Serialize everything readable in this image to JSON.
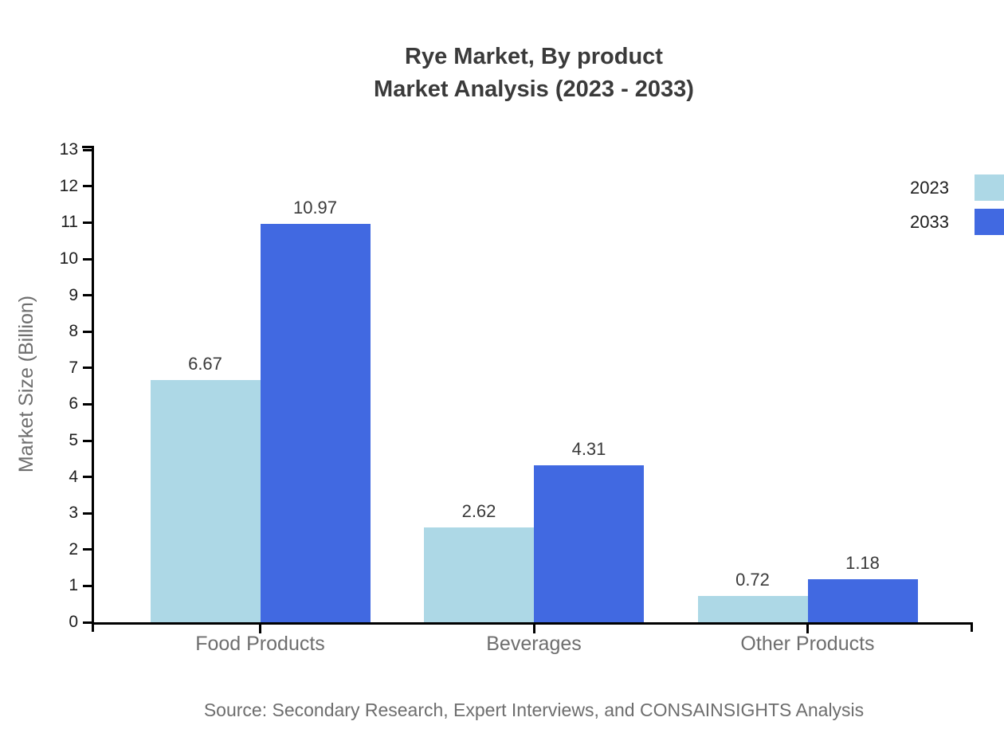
{
  "chart": {
    "title_line1": "Rye Market, By product",
    "title_line2": "Market Analysis (2023 - 2033)",
    "source": "Source: Secondary Research, Expert Interviews, and CONSAINSIGHTS Analysis"
  },
  "chart_data": {
    "type": "bar",
    "title": "Rye Market, By product Market Analysis (2023 - 2033)",
    "categories": [
      "Food Products",
      "Beverages",
      "Other Products"
    ],
    "series": [
      {
        "name": "2023",
        "color": "#ADD8E6",
        "values": [
          6.67,
          2.62,
          0.72
        ]
      },
      {
        "name": "2033",
        "color": "#4169E1",
        "values": [
          10.97,
          4.31,
          1.18
        ]
      }
    ],
    "xlabel": "",
    "ylabel": "Market Size (Billion)",
    "ylim": [
      0,
      13
    ],
    "yticks": [
      0,
      1,
      2,
      3,
      4,
      5,
      6,
      7,
      8,
      9,
      10,
      11,
      12,
      13
    ],
    "grid": false,
    "legend_position": "top-right",
    "value_labels": true,
    "value_label_format": "0.00"
  }
}
